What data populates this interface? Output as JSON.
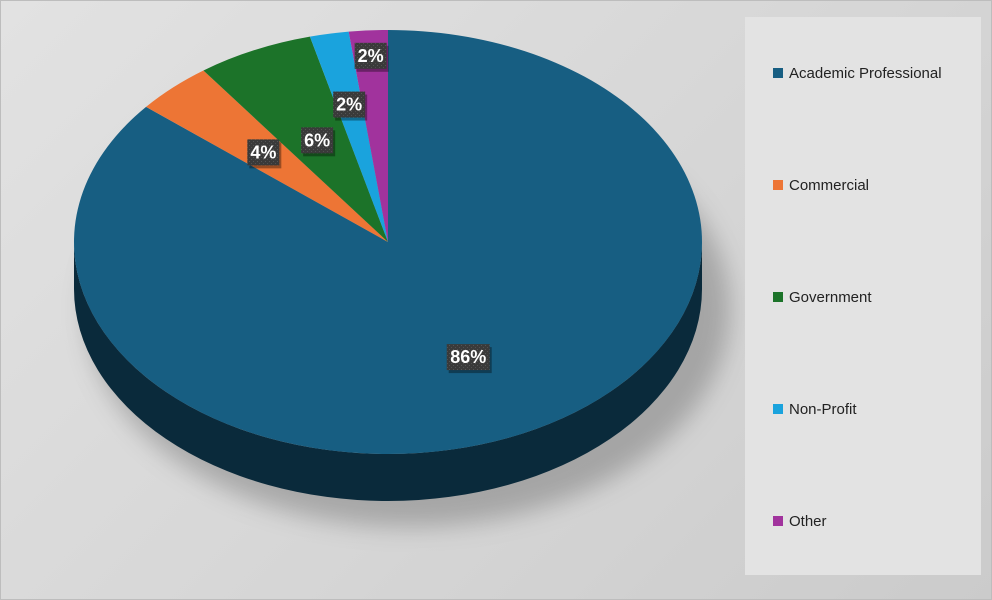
{
  "chart_data": {
    "type": "pie",
    "title": "",
    "categories": [
      "Academic Professional",
      "Commercial",
      "Government",
      "Non-Profit",
      "Other"
    ],
    "values": [
      86,
      4,
      6,
      2,
      2
    ],
    "data_labels": [
      "86%",
      "4%",
      "6%",
      "2%",
      "2%"
    ],
    "colors": [
      "#175e82",
      "#ed7535",
      "#1c7329",
      "#1aa3dd",
      "#a1339d"
    ],
    "style": "3d",
    "start_angle_deg": 0,
    "direction": "clockwise",
    "legend_position": "right",
    "legend": {
      "items": [
        {
          "label": "Academic Professional",
          "color": "#175e82"
        },
        {
          "label": "Commercial",
          "color": "#ed7535"
        },
        {
          "label": "Government",
          "color": "#1c7329"
        },
        {
          "label": "Non-Profit",
          "color": "#1aa3dd"
        },
        {
          "label": "Other",
          "color": "#a1339d"
        }
      ]
    }
  }
}
